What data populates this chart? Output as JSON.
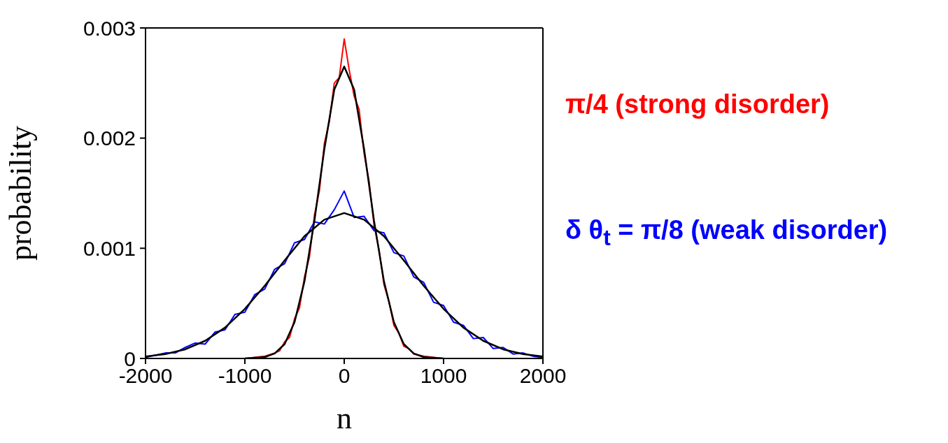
{
  "chart_data": {
    "type": "line",
    "xlabel": "n",
    "ylabel": "probability",
    "xlim": [
      -2000,
      2000
    ],
    "xticks": [
      -2000,
      -1000,
      0,
      1000,
      2000
    ],
    "ylim": [
      0,
      0.003
    ],
    "yticks": [
      0,
      0.001,
      0.002,
      0.003
    ],
    "marker": "none",
    "line_style": "solid",
    "annotations": [
      "π/4 (strong disorder)",
      "δ θ$_{t}$ = π/8 (weak disorder)"
    ],
    "series": [
      {
        "color": "#ff0000",
        "x": [
          -1000,
          -900,
          -800,
          -700,
          -650,
          -600,
          -550,
          -500,
          -450,
          -400,
          -350,
          -300,
          -250,
          -200,
          -150,
          -100,
          -50,
          0,
          50,
          100,
          150,
          200,
          250,
          300,
          350,
          400,
          450,
          500,
          550,
          600,
          650,
          700,
          800,
          900,
          1000
        ],
        "values": [
          0,
          1e-05,
          2e-05,
          5e-05,
          7e-05,
          0.00015,
          0.00019,
          0.00036,
          0.00046,
          0.00074,
          0.00092,
          0.0013,
          0.00152,
          0.00195,
          0.00215,
          0.0025,
          0.00255,
          0.0029,
          0.00262,
          0.00238,
          0.00226,
          0.00186,
          0.00161,
          0.00121,
          0.00099,
          0.00067,
          0.00052,
          0.0003,
          0.00023,
          0.00011,
          9e-05,
          4e-05,
          2e-05,
          1e-05,
          0
        ]
      },
      {
        "color": "#0000ff",
        "x": [
          -2000,
          -1900,
          -1800,
          -1700,
          -1600,
          -1500,
          -1400,
          -1300,
          -1200,
          -1100,
          -1000,
          -900,
          -800,
          -700,
          -600,
          -500,
          -400,
          -300,
          -200,
          -100,
          0,
          100,
          200,
          300,
          400,
          500,
          600,
          700,
          800,
          900,
          1000,
          1100,
          1200,
          1300,
          1400,
          1500,
          1600,
          1700,
          1800,
          1900,
          2000
        ],
        "values": [
          1e-05,
          3e-05,
          5e-05,
          5e-05,
          0.0001,
          0.00014,
          0.00013,
          0.00024,
          0.00026,
          0.0004,
          0.00042,
          0.00058,
          0.00063,
          0.00081,
          0.00086,
          0.00105,
          0.00108,
          0.00124,
          0.00122,
          0.00135,
          0.00152,
          0.00128,
          0.00129,
          0.00116,
          0.00114,
          0.00096,
          0.00093,
          0.00074,
          0.00069,
          0.00051,
          0.00048,
          0.00033,
          0.0003,
          0.00018,
          0.00019,
          9e-05,
          0.0001,
          4e-05,
          5e-05,
          2e-05,
          1e-05
        ]
      },
      {
        "type": "line",
        "color": "#000000",
        "x": [
          -1000,
          -800,
          -700,
          -600,
          -500,
          -400,
          -300,
          -200,
          -100,
          0,
          100,
          200,
          300,
          400,
          500,
          600,
          700,
          800,
          1000
        ],
        "values": [
          0,
          1.3e-05,
          4.5e-05,
          0.00013,
          0.00033,
          0.0007,
          0.00125,
          0.0019,
          0.00244,
          0.00265,
          0.00244,
          0.0019,
          0.00125,
          0.0007,
          0.00033,
          0.00013,
          4.5e-05,
          1.3e-05,
          0
        ]
      },
      {
        "type": "line",
        "color": "#000000",
        "x": [
          -2000,
          -1800,
          -1600,
          -1400,
          -1200,
          -1000,
          -800,
          -600,
          -400,
          -200,
          0,
          200,
          400,
          600,
          800,
          1000,
          1200,
          1400,
          1600,
          1800,
          2000
        ],
        "values": [
          1.7e-05,
          4e-05,
          8.3e-05,
          0.00016,
          0.00028,
          0.00045,
          0.00066,
          0.00089,
          0.00111,
          0.00126,
          0.00132,
          0.00126,
          0.00111,
          0.00089,
          0.00066,
          0.00045,
          0.00028,
          0.00016,
          8.3e-05,
          4e-05,
          1.7e-05
        ]
      }
    ]
  }
}
